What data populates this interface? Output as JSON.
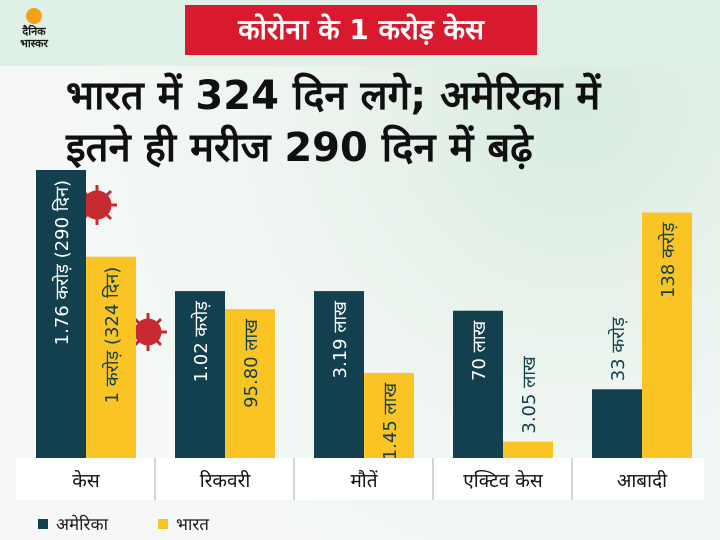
{
  "logo_text": "दैनिक भास्कर",
  "tag": "कोरोना के 1 करोड़ केस",
  "headline_line1": "भारत में 324 दिन लगे; अमेरिका में",
  "headline_line2": "इतने ही मरीज 290 दिन में बढ़े",
  "colors": {
    "usa": "#13404f",
    "india": "#fbc425",
    "tag": "#d9192d"
  },
  "chart_data": {
    "type": "bar",
    "categories": [
      "केस",
      "रिकवरी",
      "मौतें",
      "एक्टिव केस",
      "आबादी"
    ],
    "series": [
      {
        "name": "अमेरिका",
        "values": [
          1.76,
          1.02,
          1.02,
          0.9,
          0.42
        ],
        "labels": [
          "1.76 करोड़ (290 दिन)",
          "1.02 करोड़",
          "3.19 लाख",
          "70 लाख",
          "33 करोड़"
        ]
      },
      {
        "name": "भारत",
        "values": [
          1.23,
          0.91,
          0.52,
          0.1,
          1.5
        ],
        "labels": [
          "1 करोड़ (324 दिन)",
          "95.80 लाख",
          "1.45 लाख",
          "3.05 लाख",
          "138 करोड़"
        ]
      }
    ],
    "ylim": [
      0,
      1.76
    ],
    "legend": {
      "position": "bottom-left"
    }
  }
}
